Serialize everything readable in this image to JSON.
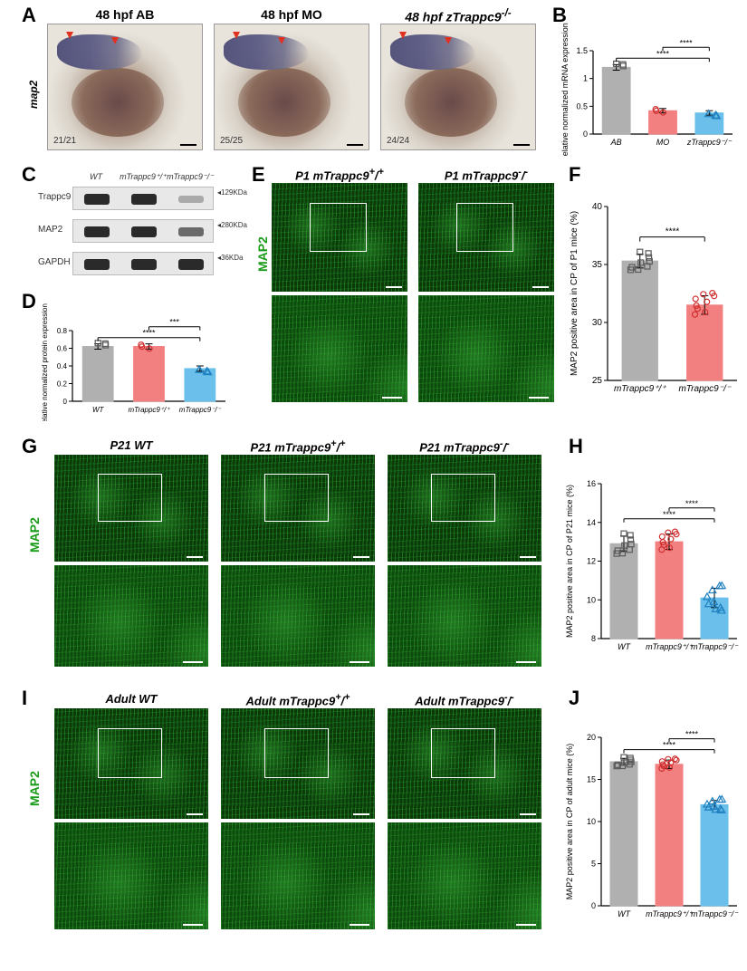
{
  "panelA": {
    "label": "A",
    "row_label": "map2",
    "images": [
      {
        "title": "48 hpf   AB",
        "count": "21/21"
      },
      {
        "title": "48 hpf   MO",
        "count": "25/25"
      },
      {
        "title": "48 hpf   zTrappc9",
        "title_sup": "-/-",
        "count": "24/24"
      }
    ]
  },
  "panelB": {
    "label": "B",
    "ylabel": "Relative normalized mRNA expression",
    "ylim": [
      0,
      1.5
    ],
    "ytick_step": 0.5,
    "categories": [
      "AB",
      "MO",
      "zTrappc9⁻/⁻"
    ],
    "values": [
      1.2,
      0.42,
      0.38
    ],
    "errors": [
      0.05,
      0.04,
      0.04
    ],
    "bar_colors": [
      "#b0b0b0",
      "#f28080",
      "#6ac0ea"
    ],
    "marker_colors": [
      "#5a5a5a",
      "#d03030",
      "#2080c0"
    ],
    "sig_labels": [
      "****",
      "****"
    ],
    "label_fontsize": 9,
    "bar_width": 0.6
  },
  "panelC": {
    "label": "C",
    "lane_labels": [
      "WT",
      "mTrappc9⁺/⁺",
      "mTrappc9⁻/⁻"
    ],
    "rows": [
      {
        "name": "Trappc9",
        "kda": "129KDa",
        "intensities": [
          1.0,
          1.0,
          0.1
        ]
      },
      {
        "name": "MAP2",
        "kda": "280KDa",
        "intensities": [
          1.0,
          1.0,
          0.55
        ]
      },
      {
        "name": "GAPDH",
        "kda": "36KDa",
        "intensities": [
          1.0,
          1.0,
          1.0
        ]
      }
    ]
  },
  "panelD": {
    "label": "D",
    "ylabel": "Relative normalized protein expression",
    "ylim": [
      0,
      0.8
    ],
    "ytick_step": 0.2,
    "categories": [
      "WT",
      "mTrappc9⁺/⁺",
      "mTrappc9⁻/⁻"
    ],
    "values": [
      0.62,
      0.62,
      0.37
    ],
    "errors": [
      0.03,
      0.03,
      0.03
    ],
    "bar_colors": [
      "#b0b0b0",
      "#f28080",
      "#6ac0ea"
    ],
    "marker_colors": [
      "#5a5a5a",
      "#d03030",
      "#2080c0"
    ],
    "sig_labels": [
      "****",
      "***"
    ],
    "label_fontsize": 8,
    "bar_width": 0.6
  },
  "panelE": {
    "label": "E",
    "row_label": "MAP2",
    "titles": [
      "P1  mTrappc9⁺/⁺",
      "P1  mTrappc9⁻/⁻"
    ]
  },
  "panelF": {
    "label": "F",
    "ylabel": "MAP2 positive area in CP of P1 mice (%)",
    "ylim": [
      25,
      40
    ],
    "ytick_step": 5,
    "categories": [
      "mTrappc9⁺/⁺",
      "mTrappc9⁻/⁻"
    ],
    "values": [
      35.3,
      31.5
    ],
    "errors": [
      0.6,
      0.8
    ],
    "bar_colors": [
      "#b0b0b0",
      "#f28080"
    ],
    "marker_colors": [
      "#5a5a5a",
      "#d03030"
    ],
    "sig": "****",
    "label_fontsize": 10,
    "bar_width": 0.55,
    "n_points": 9
  },
  "panelG": {
    "label": "G",
    "row_label": "MAP2",
    "titles": [
      "P21 WT",
      "P21  mTrappc9⁺/⁺",
      "P21  mTrappc9⁻/⁻"
    ]
  },
  "panelH": {
    "label": "H",
    "ylabel": "MAP2 positive area in CP of P21 mice (%)",
    "ylim": [
      8,
      16
    ],
    "ytick_step": 2,
    "categories": [
      "WT",
      "mTrappc9⁺/⁺",
      "mTrappc9⁻/⁻"
    ],
    "values": [
      12.9,
      13.0,
      10.1
    ],
    "errors": [
      0.4,
      0.4,
      0.5
    ],
    "bar_colors": [
      "#b0b0b0",
      "#f28080",
      "#6ac0ea"
    ],
    "marker_colors": [
      "#5a5a5a",
      "#d03030",
      "#2080c0"
    ],
    "sig_labels": [
      "****",
      "****"
    ],
    "label_fontsize": 9,
    "bar_width": 0.6,
    "n_points": 9
  },
  "panelI": {
    "label": "I",
    "row_label": "MAP2",
    "titles": [
      "Adult  WT",
      "Adult  mTrappc9⁺/⁺",
      "Adult  mTrappc9⁻/⁻"
    ]
  },
  "panelJ": {
    "label": "J",
    "ylabel": "MAP2 positive area in CP of adult mice (%)",
    "ylim": [
      0,
      20
    ],
    "ytick_step": 5,
    "categories": [
      "WT",
      "mTrappc9⁺/⁺",
      "mTrappc9⁻/⁻"
    ],
    "values": [
      17.1,
      16.8,
      12.0
    ],
    "errors": [
      0.4,
      0.5,
      0.5
    ],
    "bar_colors": [
      "#b0b0b0",
      "#f28080",
      "#6ac0ea"
    ],
    "marker_colors": [
      "#5a5a5a",
      "#d03030",
      "#2080c0"
    ],
    "sig_labels": [
      "****",
      "****"
    ],
    "label_fontsize": 9,
    "bar_width": 0.6,
    "n_points": 9
  },
  "colors": {
    "axis": "#000000",
    "text": "#000000"
  }
}
